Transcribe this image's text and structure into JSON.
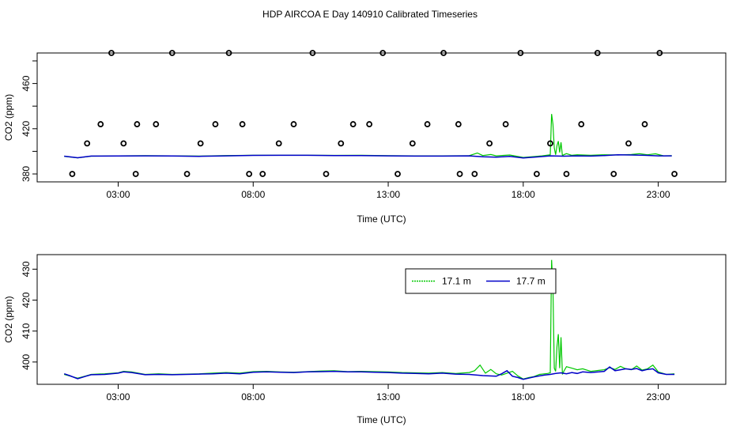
{
  "title": "HDP AIRCOA E  Day 140910  Calibrated Timeseries",
  "colors": {
    "series_17_1": "#00c800",
    "series_17_7": "#0000c8",
    "axis": "#000000",
    "background": "#ffffff"
  },
  "chart_data": [
    {
      "type": "scatter+line",
      "panel": "top",
      "xlabel": "Time (UTC)",
      "ylabel": "CO2 (ppm)",
      "xlim": [
        0.0,
        25.5
      ],
      "ylim": [
        373,
        487
      ],
      "x_ticks": [
        3,
        8,
        13,
        18,
        23
      ],
      "x_tick_labels": [
        "03:00",
        "08:00",
        "13:00",
        "18:00",
        "23:00"
      ],
      "y_ticks": [
        380,
        420,
        460
      ],
      "y_tick_labels": [
        "380",
        "420",
        "460"
      ],
      "y_minor_ticks": [
        400,
        440,
        480
      ],
      "legend": null,
      "calibration_points": {
        "marker": "open-circle",
        "x": [
          1.3,
          1.85,
          2.35,
          2.75,
          3.2,
          3.65,
          3.7,
          4.4,
          5.0,
          5.55,
          6.05,
          6.6,
          7.1,
          7.6,
          7.85,
          8.35,
          8.95,
          9.5,
          10.2,
          10.7,
          11.25,
          11.7,
          12.3,
          12.8,
          13.35,
          13.9,
          14.45,
          15.05,
          15.6,
          15.65,
          16.2,
          16.75,
          17.35,
          17.9,
          18.5,
          19.0,
          19.6,
          20.15,
          20.75,
          21.35,
          21.9,
          22.5,
          23.05,
          23.6
        ],
        "y": [
          380,
          407,
          424,
          487,
          407,
          380,
          424,
          424,
          487,
          380,
          407,
          424,
          487,
          424,
          380,
          380,
          407,
          424,
          487,
          380,
          407,
          424,
          424,
          487,
          380,
          407,
          424,
          487,
          424,
          380,
          380,
          407,
          424,
          487,
          380,
          407,
          380,
          424,
          487,
          380,
          407,
          424,
          487,
          380
        ]
      },
      "series": [
        {
          "name": "17.1 m",
          "color": "#00c800",
          "x": [
            1.0,
            1.5,
            2.0,
            3.0,
            4.0,
            5.0,
            6.0,
            7.0,
            8.0,
            9.0,
            10.0,
            11.0,
            12.0,
            13.0,
            14.0,
            15.0,
            16.0,
            16.3,
            16.5,
            16.8,
            17.0,
            17.5,
            18.0,
            18.4,
            18.7,
            19.0,
            19.05,
            19.1,
            19.15,
            19.2,
            19.25,
            19.3,
            19.35,
            19.4,
            19.45,
            19.5,
            19.6,
            19.8,
            20.0,
            20.5,
            21.0,
            21.5,
            22.0,
            22.3,
            22.6,
            22.9,
            23.2,
            23.5
          ],
          "y": [
            395.5,
            394.2,
            395.7,
            396.0,
            396.2,
            396.0,
            395.8,
            396.3,
            396.5,
            396.5,
            396.6,
            396.4,
            396.5,
            396.2,
            396.0,
            396.0,
            396.2,
            398.5,
            396.3,
            397.2,
            396.0,
            396.8,
            394.6,
            395.4,
            396.0,
            397.0,
            433.0,
            424.0,
            403.0,
            397.0,
            405.0,
            409.0,
            399.0,
            408.0,
            396.0,
            397.0,
            398.0,
            396.5,
            397.0,
            396.5,
            397.0,
            396.8,
            397.2,
            398.0,
            397.0,
            397.8,
            396.0,
            396.2
          ]
        },
        {
          "name": "17.7 m",
          "color": "#0000c8",
          "x": [
            1.0,
            1.5,
            2.0,
            3.0,
            4.0,
            5.0,
            6.0,
            7.0,
            8.0,
            9.0,
            10.0,
            11.0,
            12.0,
            13.0,
            14.0,
            15.0,
            16.0,
            16.5,
            17.0,
            17.5,
            18.0,
            18.5,
            19.0,
            19.5,
            20.0,
            20.5,
            21.0,
            21.5,
            22.0,
            22.5,
            23.0,
            23.5
          ],
          "y": [
            395.7,
            394.3,
            395.8,
            395.9,
            396.0,
            395.9,
            395.6,
            396.0,
            396.4,
            396.5,
            396.5,
            396.3,
            396.3,
            396.0,
            395.8,
            395.8,
            396.0,
            395.2,
            394.8,
            395.6,
            394.2,
            395.0,
            396.0,
            395.7,
            396.0,
            395.8,
            396.3,
            397.0,
            396.8,
            396.5,
            396.0,
            396.0
          ]
        }
      ]
    },
    {
      "type": "line",
      "panel": "bottom",
      "xlabel": "Time (UTC)",
      "ylabel": "CO2 (ppm)",
      "xlim": [
        0.0,
        25.5
      ],
      "ylim": [
        392.8,
        434.7
      ],
      "x_ticks": [
        3,
        8,
        13,
        18,
        23
      ],
      "x_tick_labels": [
        "03:00",
        "08:00",
        "13:00",
        "18:00",
        "23:00"
      ],
      "y_ticks": [
        400,
        410,
        420,
        430
      ],
      "y_tick_labels": [
        "400",
        "410",
        "420",
        "430"
      ],
      "legend": {
        "placement": "top-right",
        "entries": [
          "17.1 m",
          "17.7 m"
        ]
      },
      "series": [
        {
          "name": "17.1 m",
          "color": "#00c800",
          "x": [
            1.0,
            1.2,
            1.5,
            1.8,
            2.0,
            2.5,
            3.0,
            3.2,
            3.5,
            4.0,
            4.5,
            5.0,
            5.5,
            6.0,
            6.5,
            7.0,
            7.5,
            8.0,
            8.5,
            9.0,
            9.5,
            10.0,
            10.5,
            11.0,
            11.5,
            12.0,
            12.5,
            13.0,
            13.5,
            14.0,
            14.5,
            15.0,
            15.5,
            16.0,
            16.2,
            16.4,
            16.6,
            16.8,
            17.0,
            17.2,
            17.4,
            17.6,
            17.8,
            18.0,
            18.2,
            18.4,
            18.6,
            18.8,
            18.9,
            19.0,
            19.05,
            19.1,
            19.15,
            19.2,
            19.25,
            19.3,
            19.35,
            19.4,
            19.45,
            19.5,
            19.6,
            19.8,
            20.0,
            20.2,
            20.5,
            20.8,
            21.0,
            21.2,
            21.4,
            21.6,
            21.8,
            22.0,
            22.2,
            22.4,
            22.6,
            22.8,
            23.0,
            23.3,
            23.6
          ],
          "y": [
            396.0,
            395.5,
            394.8,
            395.5,
            396.0,
            396.2,
            396.5,
            397.0,
            396.8,
            396.0,
            396.2,
            396.0,
            396.1,
            396.2,
            396.4,
            396.6,
            396.4,
            396.9,
            397.0,
            396.8,
            396.7,
            396.9,
            397.1,
            397.2,
            396.9,
            397.0,
            396.9,
            396.8,
            396.6,
            396.5,
            396.4,
            396.6,
            396.3,
            396.6,
            397.2,
            399.0,
            396.4,
            397.6,
            396.2,
            395.8,
            396.4,
            397.0,
            395.5,
            394.5,
            395.0,
            395.3,
            396.0,
            396.2,
            396.3,
            396.5,
            433.0,
            424.0,
            398.0,
            397.0,
            405.0,
            409.0,
            398.0,
            408.0,
            396.0,
            397.0,
            398.5,
            398.0,
            397.5,
            397.8,
            397.0,
            397.3,
            397.5,
            398.2,
            397.6,
            398.6,
            397.8,
            397.5,
            398.7,
            397.4,
            397.8,
            399.0,
            396.8,
            396.0,
            396.2
          ]
        },
        {
          "name": "17.7 m",
          "color": "#0000c8",
          "x": [
            1.0,
            1.2,
            1.5,
            1.8,
            2.0,
            2.5,
            3.0,
            3.2,
            3.5,
            4.0,
            4.5,
            5.0,
            5.5,
            6.0,
            6.5,
            7.0,
            7.5,
            8.0,
            8.5,
            9.0,
            9.5,
            10.0,
            10.5,
            11.0,
            11.5,
            12.0,
            12.5,
            13.0,
            13.5,
            14.0,
            14.5,
            15.0,
            15.5,
            16.0,
            16.5,
            17.0,
            17.2,
            17.4,
            17.6,
            17.8,
            18.0,
            18.2,
            18.4,
            18.6,
            18.8,
            19.0,
            19.2,
            19.4,
            19.6,
            19.8,
            20.0,
            20.2,
            20.5,
            20.8,
            21.0,
            21.2,
            21.4,
            21.6,
            21.8,
            22.0,
            22.2,
            22.4,
            22.6,
            22.8,
            23.0,
            23.3,
            23.6
          ],
          "y": [
            396.2,
            395.6,
            394.6,
            395.4,
            395.9,
            396.0,
            396.4,
            396.8,
            396.6,
            395.9,
            396.0,
            395.9,
            396.0,
            396.1,
            396.2,
            396.4,
            396.2,
            396.7,
            396.8,
            396.7,
            396.6,
            396.8,
            396.9,
            397.0,
            396.8,
            396.8,
            396.7,
            396.6,
            396.4,
            396.3,
            396.2,
            396.4,
            396.1,
            396.0,
            395.6,
            395.4,
            396.2,
            397.2,
            395.4,
            395.0,
            394.4,
            394.8,
            395.2,
            395.5,
            395.8,
            396.0,
            396.3,
            396.5,
            396.2,
            396.6,
            396.3,
            396.8,
            396.6,
            396.8,
            397.0,
            398.4,
            397.2,
            397.5,
            397.8,
            397.6,
            397.9,
            397.2,
            397.6,
            397.8,
            396.5,
            396.0,
            396.0
          ]
        }
      ]
    }
  ]
}
